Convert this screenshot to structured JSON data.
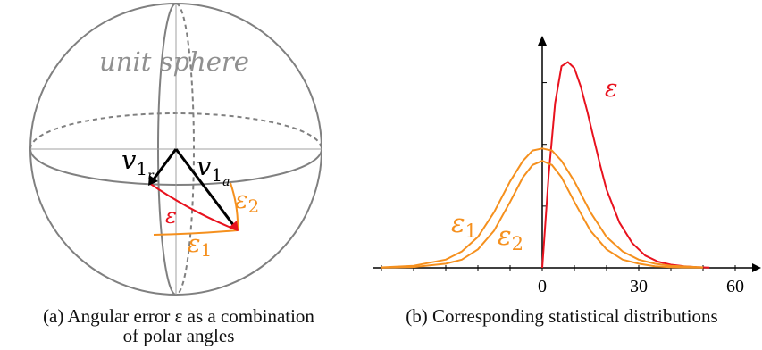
{
  "panel_a": {
    "sphere_label": "unit sphere",
    "v_r": "v",
    "v_r_sub1": "1",
    "v_r_sub2": "r",
    "v_a": "v",
    "v_a_sub1": "1",
    "v_a_sub2": "a",
    "eps": "ε",
    "eps1": "ε",
    "eps1_sub": "1",
    "eps2": "ε",
    "eps2_sub": "2",
    "caption_line1": "(a) Angular error ε as a combination",
    "caption_line2": "of polar angles"
  },
  "panel_b": {
    "caption": "(b) Corresponding statistical distributions",
    "series_label_eps": "ε",
    "series_label_eps1": "ε",
    "series_label_eps1_sub": "1",
    "series_label_eps2": "ε",
    "series_label_eps2_sub": "2"
  },
  "colors": {
    "sphere": "#808080",
    "vector": "#000000",
    "eps": "#e8121e",
    "eps_components": "#f5901e"
  },
  "chart_data": {
    "type": "line",
    "x_ticks": [
      0,
      30,
      60
    ],
    "xlim": [
      -50,
      63
    ],
    "ylim": [
      0,
      1.05
    ],
    "series": [
      {
        "name": "ε",
        "color": "#e8121e",
        "x": [
          0,
          2,
          4,
          6,
          8,
          10,
          12,
          14,
          16,
          18,
          20,
          24,
          28,
          32,
          36,
          40,
          44,
          48,
          52
        ],
        "y": [
          0,
          0.45,
          0.8,
          0.98,
          1.0,
          0.97,
          0.88,
          0.76,
          0.63,
          0.5,
          0.38,
          0.22,
          0.12,
          0.06,
          0.03,
          0.015,
          0.008,
          0.003,
          0.001
        ]
      },
      {
        "name": "ε1",
        "color": "#f5901e",
        "x": [
          -50,
          -40,
          -30,
          -25,
          -20,
          -15,
          -10,
          -6,
          -3,
          0,
          3,
          6,
          10,
          15,
          20,
          25,
          30,
          35,
          40,
          50
        ],
        "y": [
          0.002,
          0.01,
          0.04,
          0.08,
          0.15,
          0.27,
          0.42,
          0.52,
          0.57,
          0.58,
          0.57,
          0.52,
          0.42,
          0.27,
          0.15,
          0.08,
          0.04,
          0.02,
          0.01,
          0.002
        ]
      },
      {
        "name": "ε2",
        "color": "#f5901e",
        "x": [
          -50,
          -40,
          -30,
          -25,
          -20,
          -15,
          -10,
          -6,
          -3,
          0,
          3,
          6,
          10,
          15,
          20,
          25,
          30,
          35,
          40,
          50
        ],
        "y": [
          0.001,
          0.004,
          0.02,
          0.04,
          0.09,
          0.18,
          0.32,
          0.44,
          0.5,
          0.52,
          0.5,
          0.44,
          0.32,
          0.18,
          0.09,
          0.04,
          0.02,
          0.008,
          0.003,
          0.001
        ]
      }
    ]
  }
}
